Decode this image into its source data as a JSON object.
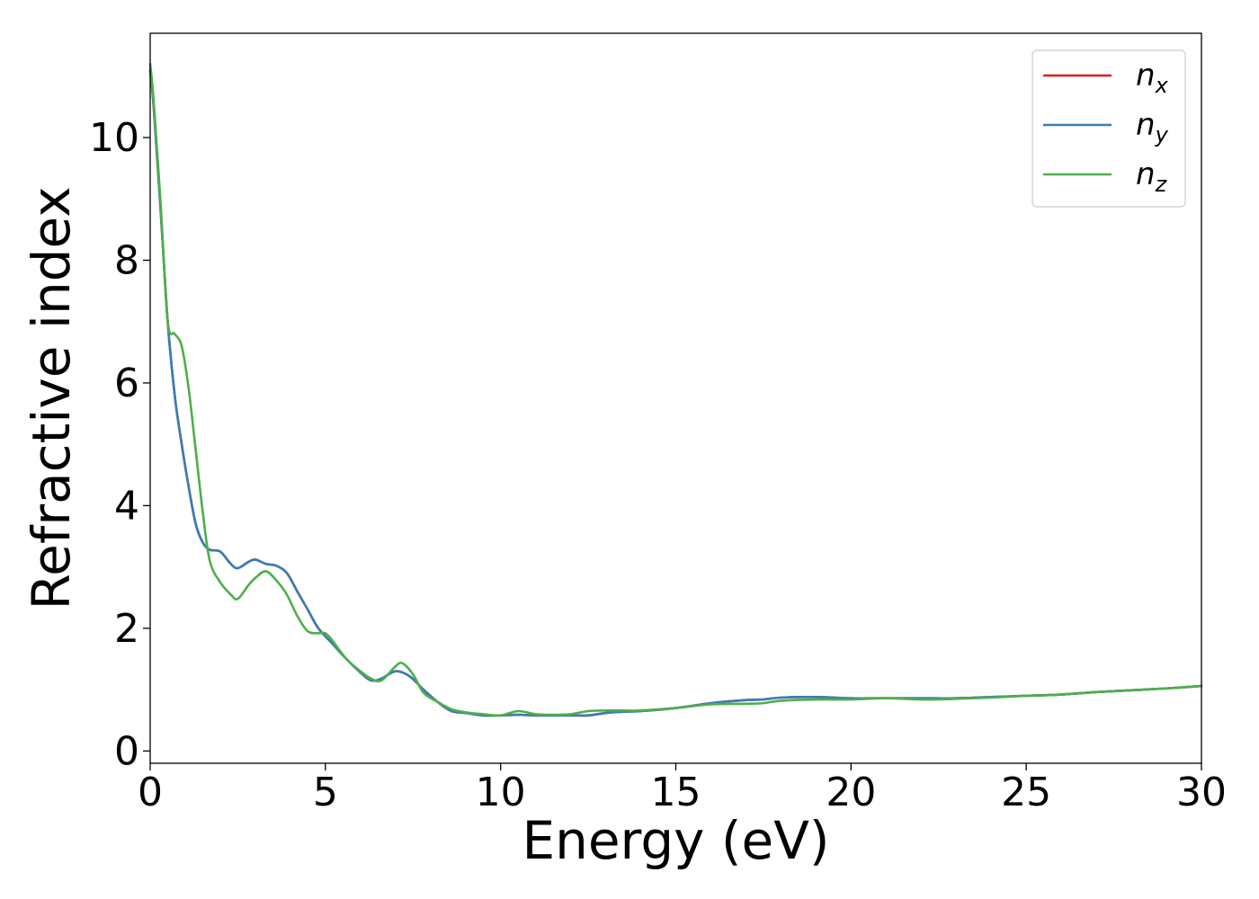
{
  "chart_data": {
    "type": "line",
    "title": "",
    "xlabel": "Energy (eV)",
    "ylabel": "Refractive index",
    "xlim": [
      0,
      30
    ],
    "ylim": [
      -0.2,
      11.7
    ],
    "xticks": [
      0,
      5,
      10,
      15,
      20,
      25,
      30
    ],
    "yticks": [
      0,
      2,
      4,
      6,
      8,
      10
    ],
    "grid": false,
    "legend_position": "top-right",
    "series": [
      {
        "name": "n_x",
        "legend_base": "n",
        "legend_sub": "x",
        "color": "#e41a1c",
        "x": [
          0,
          0.1,
          0.3,
          0.5,
          0.7,
          0.9,
          1.1,
          1.3,
          1.5,
          1.7,
          2.0,
          2.3,
          2.5,
          2.8,
          3.0,
          3.3,
          3.6,
          3.9,
          4.2,
          4.5,
          4.8,
          5.2,
          5.6,
          6.0,
          6.3,
          6.6,
          7.0,
          7.4,
          7.8,
          8.2,
          8.6,
          9.0,
          9.5,
          10.0,
          10.5,
          11.0,
          11.5,
          12.0,
          12.5,
          13.0,
          13.5,
          14.0,
          15.0,
          16.0,
          17.0,
          17.5,
          18.0,
          19.0,
          20.0,
          21.0,
          22.0,
          23.0,
          24.0,
          25.0,
          26.0,
          27.0,
          28.0,
          29.0,
          30.0
        ],
        "y": [
          11.1,
          10.5,
          8.8,
          7.0,
          5.8,
          5.0,
          4.3,
          3.7,
          3.4,
          3.28,
          3.25,
          3.05,
          2.98,
          3.08,
          3.12,
          3.05,
          3.02,
          2.9,
          2.6,
          2.3,
          2.0,
          1.75,
          1.5,
          1.28,
          1.15,
          1.18,
          1.3,
          1.22,
          1.0,
          0.8,
          0.65,
          0.62,
          0.58,
          0.58,
          0.59,
          0.58,
          0.58,
          0.58,
          0.58,
          0.62,
          0.64,
          0.65,
          0.7,
          0.78,
          0.83,
          0.84,
          0.87,
          0.88,
          0.86,
          0.86,
          0.86,
          0.86,
          0.88,
          0.9,
          0.92,
          0.96,
          0.99,
          1.02,
          1.06
        ]
      },
      {
        "name": "n_y",
        "legend_base": "n",
        "legend_sub": "y",
        "color": "#377eb8",
        "x": [
          0,
          0.1,
          0.3,
          0.5,
          0.7,
          0.9,
          1.1,
          1.3,
          1.5,
          1.7,
          2.0,
          2.3,
          2.5,
          2.8,
          3.0,
          3.3,
          3.6,
          3.9,
          4.2,
          4.5,
          4.8,
          5.2,
          5.6,
          6.0,
          6.3,
          6.6,
          7.0,
          7.4,
          7.8,
          8.2,
          8.6,
          9.0,
          9.5,
          10.0,
          10.5,
          11.0,
          11.5,
          12.0,
          12.5,
          13.0,
          13.5,
          14.0,
          15.0,
          16.0,
          17.0,
          17.5,
          18.0,
          19.0,
          20.0,
          21.0,
          22.0,
          23.0,
          24.0,
          25.0,
          26.0,
          27.0,
          28.0,
          29.0,
          30.0
        ],
        "y": [
          11.1,
          10.5,
          8.8,
          7.0,
          5.8,
          5.0,
          4.3,
          3.7,
          3.4,
          3.28,
          3.25,
          3.05,
          2.98,
          3.08,
          3.12,
          3.05,
          3.02,
          2.9,
          2.6,
          2.3,
          2.0,
          1.75,
          1.5,
          1.28,
          1.15,
          1.18,
          1.3,
          1.22,
          1.0,
          0.8,
          0.65,
          0.62,
          0.58,
          0.58,
          0.59,
          0.58,
          0.58,
          0.58,
          0.58,
          0.62,
          0.64,
          0.65,
          0.7,
          0.78,
          0.83,
          0.84,
          0.87,
          0.88,
          0.86,
          0.86,
          0.86,
          0.86,
          0.88,
          0.9,
          0.92,
          0.96,
          0.99,
          1.02,
          1.06
        ]
      },
      {
        "name": "n_z",
        "legend_base": "n",
        "legend_sub": "z",
        "color": "#4daf4a",
        "x": [
          0,
          0.1,
          0.3,
          0.5,
          0.7,
          0.9,
          1.1,
          1.3,
          1.5,
          1.7,
          2.0,
          2.3,
          2.5,
          2.8,
          3.0,
          3.3,
          3.6,
          3.9,
          4.2,
          4.5,
          4.8,
          5.0,
          5.2,
          5.6,
          6.0,
          6.3,
          6.6,
          7.0,
          7.2,
          7.5,
          7.8,
          8.2,
          8.6,
          9.0,
          9.5,
          10.0,
          10.5,
          11.0,
          11.5,
          12.0,
          12.5,
          13.0,
          13.5,
          14.0,
          15.0,
          16.0,
          17.0,
          17.5,
          18.0,
          19.0,
          20.0,
          21.0,
          22.0,
          23.0,
          24.0,
          25.0,
          26.0,
          27.0,
          28.0,
          29.0,
          30.0
        ],
        "y": [
          11.2,
          10.6,
          8.9,
          7.0,
          6.8,
          6.6,
          5.9,
          4.9,
          3.9,
          3.1,
          2.75,
          2.55,
          2.48,
          2.7,
          2.82,
          2.93,
          2.78,
          2.55,
          2.2,
          1.95,
          1.92,
          1.92,
          1.8,
          1.5,
          1.3,
          1.18,
          1.15,
          1.38,
          1.43,
          1.25,
          0.95,
          0.8,
          0.68,
          0.63,
          0.6,
          0.58,
          0.65,
          0.6,
          0.59,
          0.6,
          0.65,
          0.66,
          0.66,
          0.66,
          0.7,
          0.76,
          0.77,
          0.78,
          0.82,
          0.84,
          0.84,
          0.86,
          0.84,
          0.85,
          0.87,
          0.9,
          0.92,
          0.96,
          0.99,
          1.02,
          1.06
        ]
      }
    ]
  }
}
